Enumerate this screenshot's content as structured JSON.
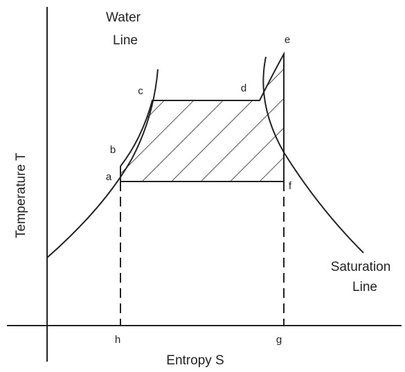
{
  "axes": {
    "x_label": "Entropy S",
    "y_label": "Temperature T"
  },
  "curves": [
    {
      "label_lines": [
        "Water",
        "Line"
      ]
    },
    {
      "label_lines": [
        "Saturation",
        "Line"
      ]
    }
  ],
  "points": [
    "a",
    "b",
    "c",
    "d",
    "e",
    "f",
    "g",
    "h"
  ]
}
